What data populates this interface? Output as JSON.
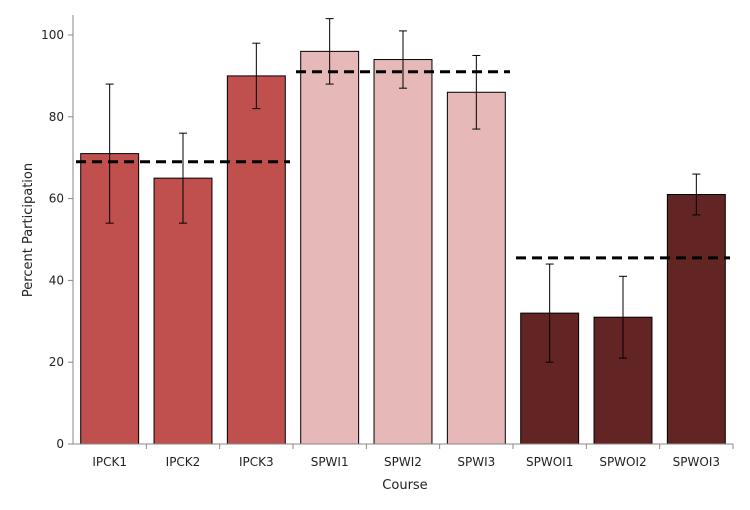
{
  "chart_data": {
    "type": "bar",
    "categories": [
      "IPCK1",
      "IPCK2",
      "IPCK3",
      "SPWI1",
      "SPWI2",
      "SPWI3",
      "SPWOI1",
      "SPWOI2",
      "SPWOI3"
    ],
    "values": [
      71,
      65,
      90,
      96,
      94,
      86,
      32,
      31,
      61
    ],
    "error_low": [
      54,
      54,
      82,
      88,
      87,
      77,
      20,
      21,
      56
    ],
    "error_high": [
      88,
      76,
      98,
      104,
      101,
      95,
      44,
      41,
      66
    ],
    "bar_colors": [
      "#c0504d",
      "#c0504d",
      "#c0504d",
      "#e6b9b8",
      "#e6b9b8",
      "#e6b9b8",
      "#632523",
      "#632523",
      "#632523"
    ],
    "group_means": [
      {
        "from": 0,
        "to": 2,
        "value": 69
      },
      {
        "from": 3,
        "to": 5,
        "value": 91
      },
      {
        "from": 6,
        "to": 8,
        "value": 45.5
      }
    ],
    "title": "",
    "xlabel": "Course",
    "ylabel": "Percent Participation",
    "ylim": [
      0,
      100
    ],
    "yticks": [
      0,
      20,
      40,
      60,
      80,
      100
    ],
    "grid": false,
    "legend": "none"
  }
}
